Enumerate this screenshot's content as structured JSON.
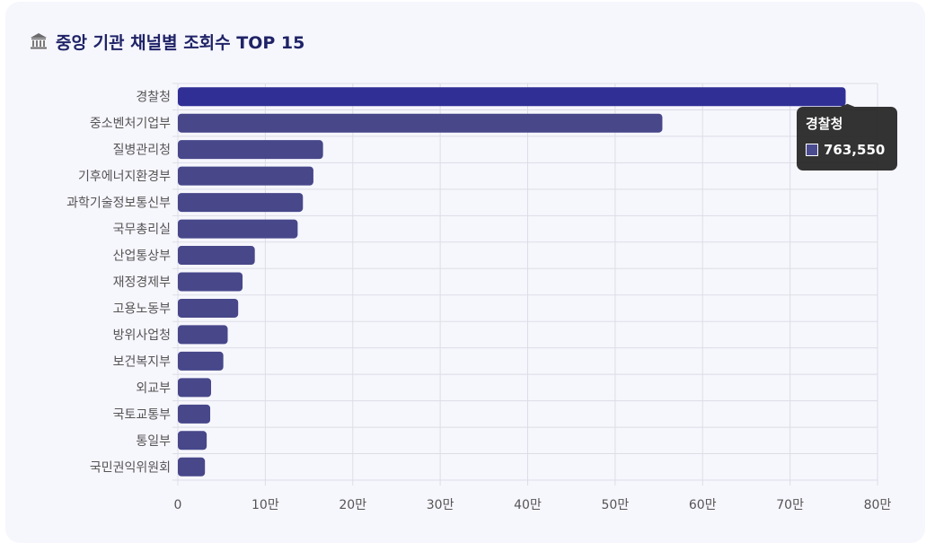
{
  "card": {
    "title": "중앙 기관 채널별 조회수 TOP 15",
    "icon": "bank-building-icon"
  },
  "colors": {
    "bar": "#47478a",
    "bar_highlight": "#2f2f95",
    "grid": "#dddde6",
    "tooltip_bg": "#1a1a1a"
  },
  "tooltip": {
    "title": "경찰청",
    "value": "763,550"
  },
  "chart_data": {
    "type": "bar",
    "orientation": "horizontal",
    "title": "중앙 기관 채널별 조회수 TOP 15",
    "categories": [
      "경찰청",
      "중소벤처기업부",
      "질병관리청",
      "기후에너지환경부",
      "과학기술정보통신부",
      "국무총리실",
      "산업통상부",
      "재정경제부",
      "고용노동부",
      "방위사업청",
      "보건복지부",
      "외교부",
      "국토교통부",
      "통일부",
      "국민권익위원회"
    ],
    "values": [
      763550,
      554000,
      166000,
      155000,
      143000,
      137000,
      88000,
      74000,
      69000,
      57000,
      52000,
      38000,
      37000,
      33000,
      31000
    ],
    "xlim": [
      0,
      800000
    ],
    "x_ticks": [
      0,
      100000,
      200000,
      300000,
      400000,
      500000,
      600000,
      700000,
      800000
    ],
    "x_tick_labels": [
      "0",
      "10만",
      "20만",
      "30만",
      "40만",
      "50만",
      "60만",
      "70만",
      "80만"
    ],
    "grid": true,
    "highlighted_index": 0
  }
}
